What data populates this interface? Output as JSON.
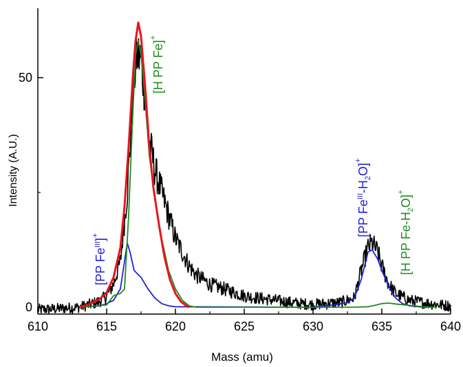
{
  "chart_data": {
    "type": "line",
    "title": "",
    "xlabel": "Mass (amu)",
    "ylabel": "Intensity (A.U.)",
    "xlim": [
      610,
      640
    ],
    "ylim": [
      -1,
      63
    ],
    "x_ticks": [
      610,
      615,
      620,
      625,
      630,
      635,
      640
    ],
    "y_ticks": [
      0,
      50
    ],
    "colors": {
      "measured": "#000000",
      "fit_total": "#e8141c",
      "fe3": "#1f1fd6",
      "hppfe": "#1f8a1f",
      "axis": "#000000"
    },
    "annotations": [
      {
        "id": "pp-fe3",
        "pre": "[PP Fe",
        "sup": "III",
        "post": "]",
        "charge": "+",
        "color": "#1f1fd6"
      },
      {
        "id": "h-pp-fe",
        "pre": "[H PP Fe]",
        "sup": "",
        "post": "",
        "charge": "+",
        "color": "#1f8a1f"
      },
      {
        "id": "pp-fe3-h2o",
        "pre": "[PP Fe",
        "sup": "III",
        "mid": "-H",
        "sub": "2",
        "post": "O]",
        "charge": "+",
        "color": "#1f1fd6"
      },
      {
        "id": "h-pp-fe-h2o",
        "pre": "[H PP Fe-H",
        "sub": "2",
        "post": "O]",
        "charge": "+",
        "color": "#1f8a1f"
      }
    ],
    "series": [
      {
        "key": "measured",
        "color": "#000000",
        "points": [
          [
            610.0,
            -0.5
          ],
          [
            611.0,
            -0.4
          ],
          [
            612.0,
            -0.2
          ],
          [
            613.0,
            0.0
          ],
          [
            613.8,
            0.6
          ],
          [
            614.5,
            1.3
          ],
          [
            615.0,
            2.5
          ],
          [
            615.5,
            5.0
          ],
          [
            616.0,
            10.0
          ],
          [
            616.5,
            25.0
          ],
          [
            616.8,
            40.0
          ],
          [
            617.0,
            50.0
          ],
          [
            617.2,
            55.0
          ],
          [
            617.5,
            54.0
          ],
          [
            617.8,
            46.0
          ],
          [
            618.0,
            38.0
          ],
          [
            618.5,
            30.0
          ],
          [
            619.0,
            25.0
          ],
          [
            619.5,
            20.0
          ],
          [
            620.0,
            15.0
          ],
          [
            620.5,
            12.0
          ],
          [
            621.0,
            9.0
          ],
          [
            621.5,
            7.0
          ],
          [
            622.0,
            6.0
          ],
          [
            622.5,
            5.0
          ],
          [
            623.0,
            4.5
          ],
          [
            623.5,
            4.0
          ],
          [
            624.0,
            3.5
          ],
          [
            625.0,
            2.5
          ],
          [
            626.0,
            2.0
          ],
          [
            627.0,
            1.6
          ],
          [
            628.0,
            1.2
          ],
          [
            629.0,
            0.8
          ],
          [
            630.0,
            0.6
          ],
          [
            631.0,
            0.8
          ],
          [
            632.0,
            1.0
          ],
          [
            633.0,
            2.0
          ],
          [
            633.5,
            8.0
          ],
          [
            634.0,
            13.0
          ],
          [
            634.3,
            14.0
          ],
          [
            634.7,
            12.0
          ],
          [
            635.0,
            9.0
          ],
          [
            635.5,
            5.0
          ],
          [
            636.0,
            3.0
          ],
          [
            637.0,
            1.5
          ],
          [
            638.0,
            1.0
          ],
          [
            639.0,
            0.6
          ],
          [
            640.0,
            0.3
          ]
        ],
        "noise": 1.2
      },
      {
        "key": "fit_total",
        "color": "#e8141c",
        "points": [
          [
            613.0,
            0.0
          ],
          [
            613.5,
            0.4
          ],
          [
            614.0,
            1.0
          ],
          [
            614.5,
            1.8
          ],
          [
            615.0,
            3.2
          ],
          [
            615.5,
            6.5
          ],
          [
            616.0,
            13.0
          ],
          [
            616.3,
            22.0
          ],
          [
            616.6,
            35.0
          ],
          [
            616.9,
            50.0
          ],
          [
            617.1,
            58.0
          ],
          [
            617.3,
            62.0
          ],
          [
            617.5,
            59.0
          ],
          [
            617.8,
            48.0
          ],
          [
            618.1,
            35.0
          ],
          [
            618.4,
            26.0
          ],
          [
            618.8,
            18.0
          ],
          [
            619.2,
            11.0
          ],
          [
            619.6,
            6.0
          ],
          [
            620.0,
            3.0
          ],
          [
            620.4,
            1.2
          ],
          [
            620.8,
            0.3
          ],
          [
            621.0,
            0.0
          ]
        ]
      },
      {
        "key": "fe3",
        "color": "#1f1fd6",
        "points": [
          [
            613.0,
            0.0
          ],
          [
            614.5,
            0.3
          ],
          [
            615.0,
            0.8
          ],
          [
            615.5,
            1.5
          ],
          [
            616.0,
            4.0
          ],
          [
            616.3,
            10.0
          ],
          [
            616.5,
            14.0
          ],
          [
            616.7,
            12.0
          ],
          [
            617.0,
            8.0
          ],
          [
            617.5,
            6.5
          ],
          [
            618.0,
            4.0
          ],
          [
            618.5,
            2.0
          ],
          [
            619.0,
            0.8
          ],
          [
            619.5,
            0.3
          ],
          [
            620.0,
            0.1
          ],
          [
            630.0,
            0.0
          ],
          [
            631.5,
            0.5
          ],
          [
            632.5,
            1.0
          ],
          [
            633.0,
            2.0
          ],
          [
            633.5,
            6.0
          ],
          [
            634.0,
            12.0
          ],
          [
            634.3,
            12.5
          ],
          [
            634.7,
            10.5
          ],
          [
            635.0,
            8.0
          ],
          [
            635.5,
            4.5
          ],
          [
            636.0,
            2.0
          ],
          [
            636.5,
            0.8
          ],
          [
            637.0,
            0.3
          ],
          [
            638.0,
            0.0
          ]
        ]
      },
      {
        "key": "hppfe",
        "color": "#1f8a1f",
        "points": [
          [
            613.0,
            0.0
          ],
          [
            615.0,
            0.5
          ],
          [
            615.5,
            2.5
          ],
          [
            616.0,
            3.0
          ],
          [
            616.3,
            4.0
          ],
          [
            616.6,
            20.0
          ],
          [
            616.9,
            42.0
          ],
          [
            617.1,
            55.0
          ],
          [
            617.3,
            58.0
          ],
          [
            617.5,
            55.0
          ],
          [
            617.8,
            45.0
          ],
          [
            618.1,
            33.0
          ],
          [
            618.5,
            24.0
          ],
          [
            619.0,
            15.0
          ],
          [
            619.5,
            8.0
          ],
          [
            620.0,
            4.0
          ],
          [
            620.5,
            1.5
          ],
          [
            621.0,
            0.3
          ],
          [
            621.5,
            0.0
          ],
          [
            630.0,
            0.0
          ],
          [
            633.0,
            0.0
          ],
          [
            634.0,
            0.1
          ],
          [
            634.5,
            0.4
          ],
          [
            635.0,
            0.8
          ],
          [
            635.5,
            0.9
          ],
          [
            636.0,
            0.7
          ],
          [
            637.0,
            0.4
          ],
          [
            638.0,
            0.1
          ],
          [
            639.0,
            0.0
          ]
        ]
      }
    ]
  }
}
